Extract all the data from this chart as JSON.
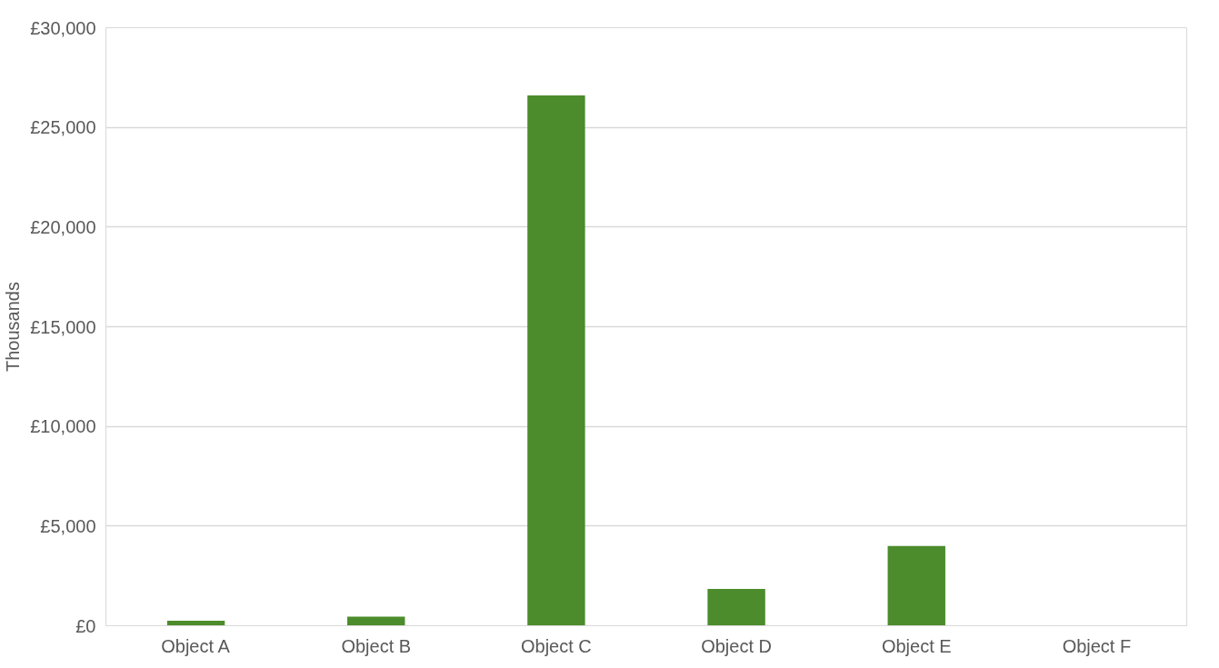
{
  "chart_data": {
    "type": "bar",
    "ylabel": "Thousands",
    "categories": [
      "Object A",
      "Object B",
      "Object C",
      "Object D",
      "Object E",
      "Object F"
    ],
    "values": [
      250,
      460,
      26600,
      1850,
      4000,
      0
    ],
    "color": "#4c8c2c",
    "ylim": [
      0,
      30000
    ],
    "yticks": [
      {
        "value": 0,
        "label": "£0"
      },
      {
        "value": 5000,
        "label": "£5,000"
      },
      {
        "value": 10000,
        "label": "£10,000"
      },
      {
        "value": 15000,
        "label": "£15,000"
      },
      {
        "value": 20000,
        "label": "£20,000"
      },
      {
        "value": 25000,
        "label": "£25,000"
      },
      {
        "value": 30000,
        "label": "£30,000"
      }
    ],
    "grid": "y"
  }
}
